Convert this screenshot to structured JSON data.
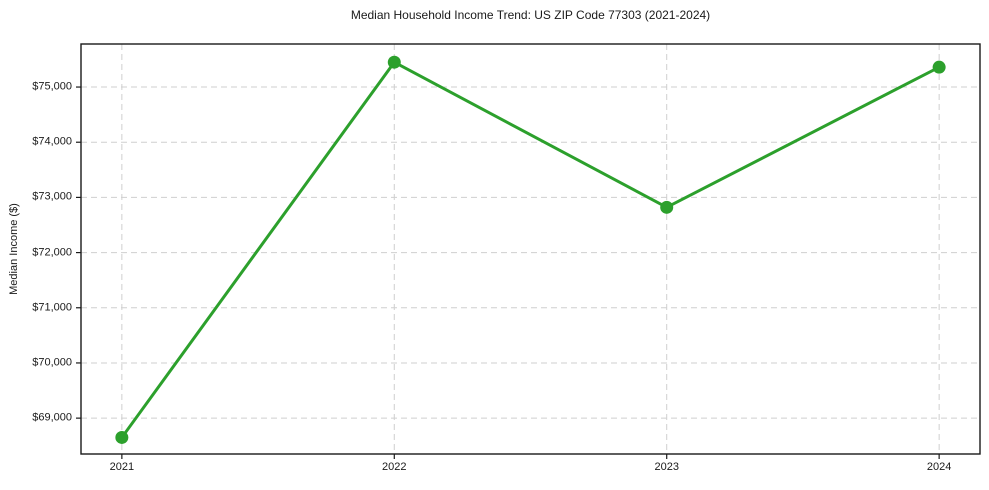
{
  "window": {
    "background_color": "#ffffff"
  },
  "chart_data": {
    "type": "line",
    "title": "Median Household Income Trend: US ZIP Code 77303 (2021-2024)",
    "xlabel": "",
    "ylabel": "Median Income ($)",
    "categories": [
      "2021",
      "2022",
      "2023",
      "2024"
    ],
    "x": [
      2021,
      2022,
      2023,
      2024
    ],
    "values": [
      68650,
      75450,
      72820,
      75360
    ],
    "yticks": [
      {
        "value": 69000,
        "label": "$69,000"
      },
      {
        "value": 70000,
        "label": "$70,000"
      },
      {
        "value": 71000,
        "label": "$71,000"
      },
      {
        "value": 72000,
        "label": "$72,000"
      },
      {
        "value": 73000,
        "label": "$73,000"
      },
      {
        "value": 74000,
        "label": "$74,000"
      },
      {
        "value": 75000,
        "label": "$75,000"
      }
    ],
    "xlim": [
      2020.85,
      2024.15
    ],
    "ylim": [
      68350,
      75780
    ],
    "grid": true,
    "grid_style": "dashed",
    "legend": "none",
    "marker": "circle",
    "colors": {
      "line": "#2ca02c",
      "marker": "#2ca02c",
      "grid": "#cfcfcf",
      "frame": "#1a1a1a",
      "tick": "#1a1a1a",
      "text": "#1a1a1a"
    }
  }
}
